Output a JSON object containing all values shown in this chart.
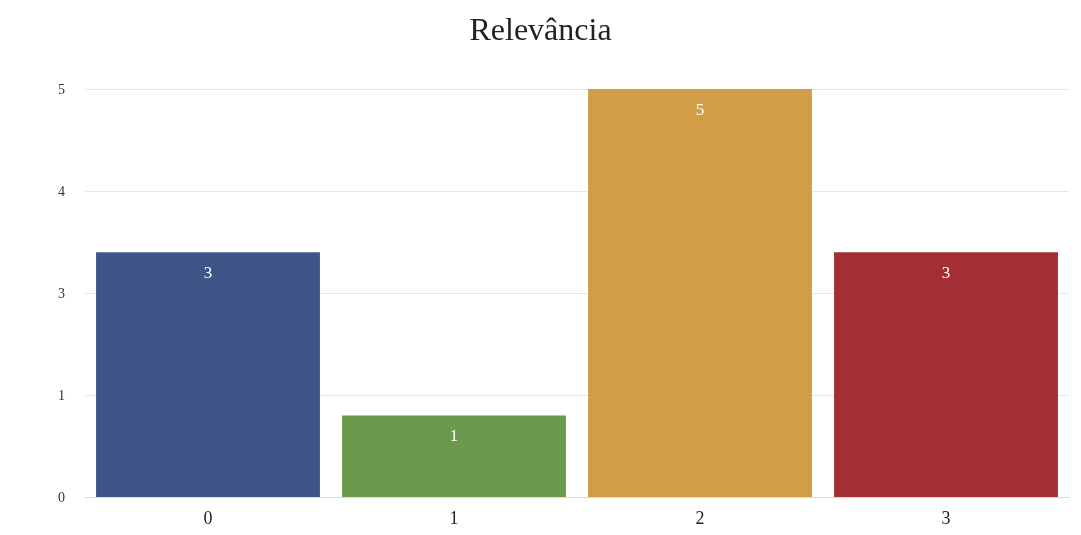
{
  "chart_data": {
    "type": "bar",
    "title": "Relevância",
    "categories": [
      "0",
      "1",
      "2",
      "3"
    ],
    "values": [
      3,
      1,
      5,
      3
    ],
    "colors": [
      "#3f5587",
      "#6b9a4c",
      "#d29e45",
      "#a32e33"
    ],
    "ylim": [
      0,
      5
    ],
    "yticks": [
      0,
      {
        "value": 1.25,
        "label": "1"
      },
      {
        "value": 2.5,
        "label": "3"
      },
      {
        "value": 3.75,
        "label": "4"
      },
      5
    ],
    "grid": "y",
    "data_labels": true
  }
}
